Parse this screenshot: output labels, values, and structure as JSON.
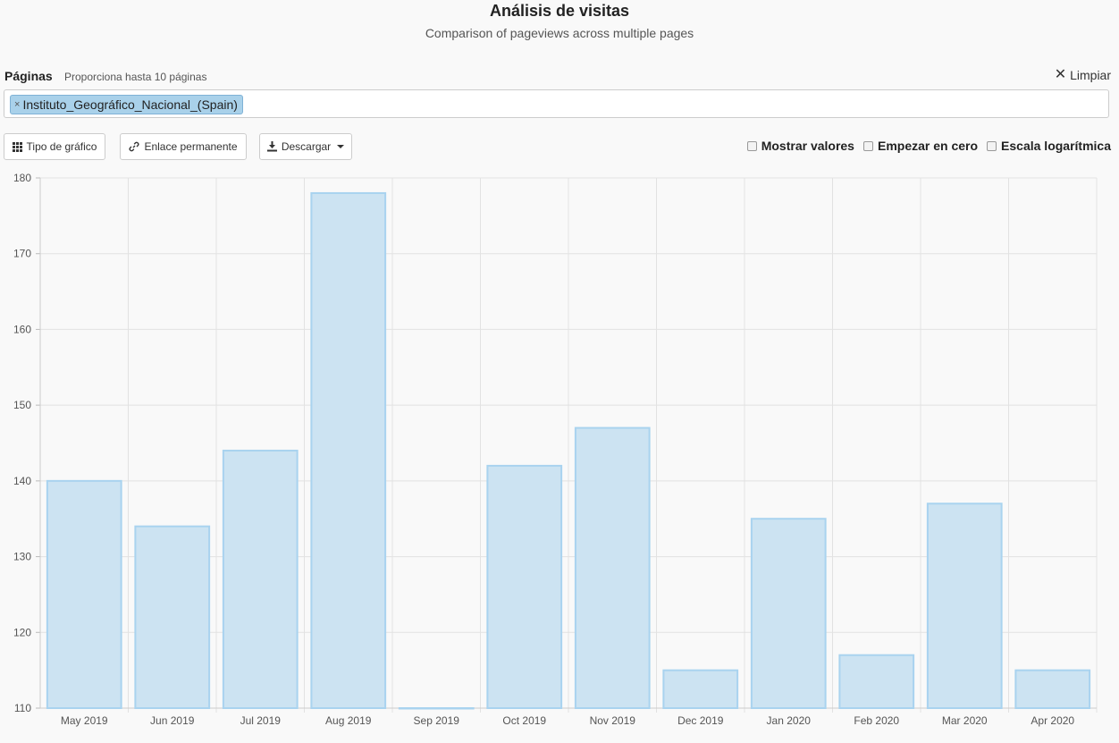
{
  "header": {
    "title": "Análisis de visitas",
    "subtitle": "Comparison of pageviews across multiple pages"
  },
  "pages": {
    "label": "Páginas",
    "hint": "Proporciona hasta 10 páginas",
    "clear_label": "Limpiar",
    "selected": [
      "Instituto_Geográfico_Nacional_(Spain)"
    ]
  },
  "toolbar": {
    "chart_type_label": "Tipo de gráfico",
    "permalink_label": "Enlace permanente",
    "download_label": "Descargar",
    "show_values_label": "Mostrar valores",
    "start_zero_label": "Empezar en cero",
    "log_scale_label": "Escala logarítmica"
  },
  "colors": {
    "bar_fill": "#cce3f2",
    "bar_stroke": "#a9d3ef",
    "chip_bg": "#a9d1ea",
    "grid": "#e2e2e2"
  },
  "chart_data": {
    "type": "bar",
    "categories": [
      "May 2019",
      "Jun 2019",
      "Jul 2019",
      "Aug 2019",
      "Sep 2019",
      "Oct 2019",
      "Nov 2019",
      "Dec 2019",
      "Jan 2020",
      "Feb 2020",
      "Mar 2020",
      "Apr 2020"
    ],
    "series": [
      {
        "name": "Instituto_Geográfico_Nacional_(Spain)",
        "values": [
          140,
          134,
          144,
          178,
          110,
          142,
          147,
          115,
          135,
          117,
          137,
          115
        ]
      }
    ],
    "ylim": [
      110,
      180
    ],
    "yticks": [
      110,
      120,
      130,
      140,
      150,
      160,
      170,
      180
    ],
    "grid": true,
    "title": "",
    "xlabel": "",
    "ylabel": ""
  }
}
